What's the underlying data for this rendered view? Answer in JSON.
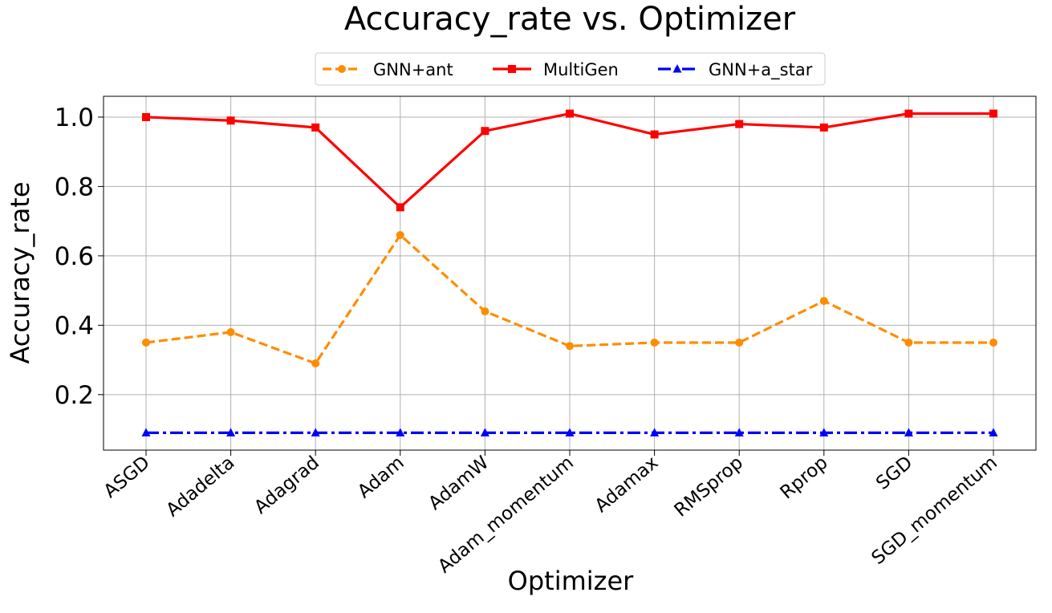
{
  "chart_data": {
    "type": "line",
    "title": "Accuracy_rate vs. Optimizer",
    "xlabel": "Optimizer",
    "ylabel": "Accuracy_rate",
    "categories": [
      "ASGD",
      "Adadelta",
      "Adagrad",
      "Adam",
      "AdamW",
      "Adam_momentum",
      "Adamax",
      "RMSprop",
      "Rprop",
      "SGD",
      "SGD_momentum"
    ],
    "ylim": [
      0.04,
      1.06
    ],
    "yticks": [
      0.2,
      0.4,
      0.6,
      0.8,
      1.0
    ],
    "ytick_labels": [
      "0.2",
      "0.4",
      "0.6",
      "0.8",
      "1.0"
    ],
    "grid": true,
    "legend_position": "top-center",
    "series": [
      {
        "name": "GNN+ant",
        "values": [
          0.35,
          0.38,
          0.29,
          0.66,
          0.44,
          0.34,
          0.35,
          0.35,
          0.47,
          0.35,
          0.35
        ],
        "color": "#ff8c00",
        "line_style": "dashed",
        "marker": "circle"
      },
      {
        "name": "MultiGen",
        "values": [
          1.0,
          0.99,
          0.97,
          0.74,
          0.96,
          1.01,
          0.95,
          0.98,
          0.97,
          1.01,
          1.01
        ],
        "color": "#ff0000",
        "line_style": "solid",
        "marker": "square"
      },
      {
        "name": "GNN+a_star",
        "values": [
          0.09,
          0.09,
          0.09,
          0.09,
          0.09,
          0.09,
          0.09,
          0.09,
          0.09,
          0.09,
          0.09
        ],
        "color": "#0000ff",
        "line_style": "dashdot",
        "marker": "triangle"
      }
    ]
  }
}
